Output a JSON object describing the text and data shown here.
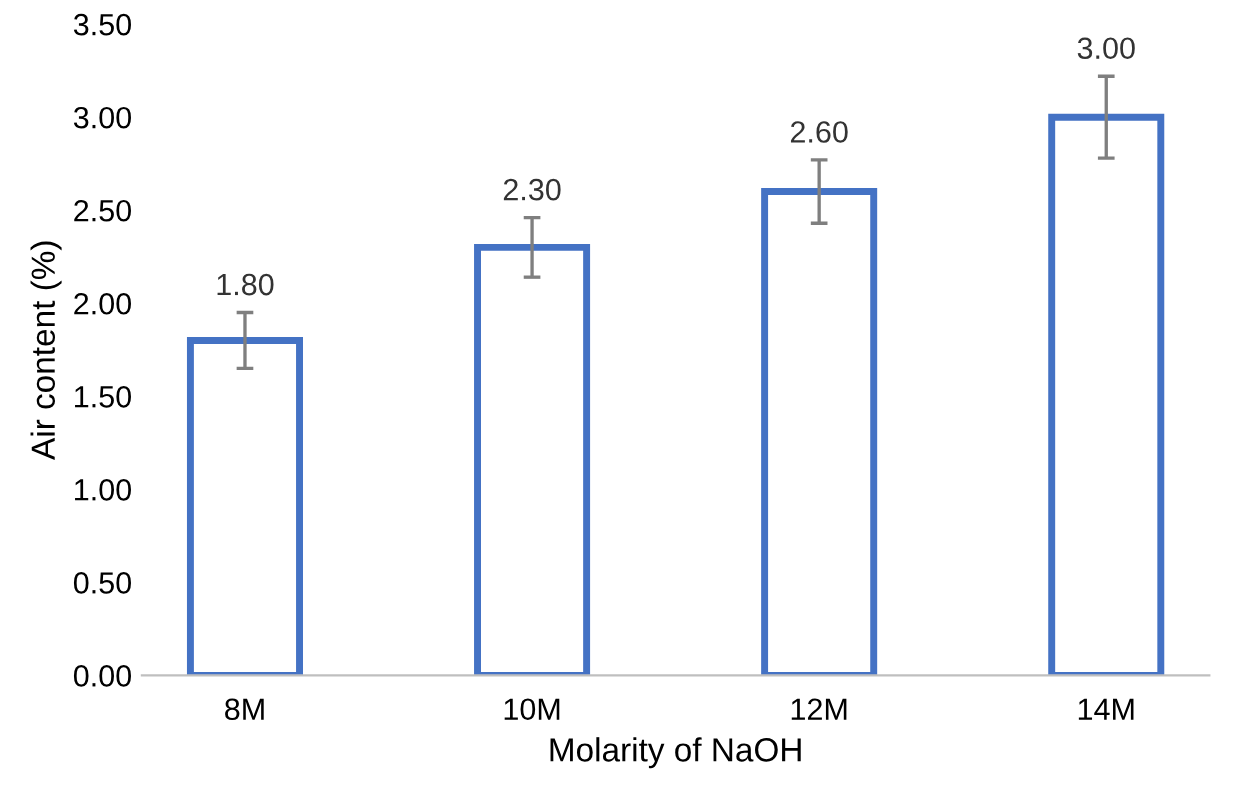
{
  "chart_data": {
    "type": "bar",
    "xlabel": "Molarity of NaOH",
    "ylabel": "Air content (%)",
    "categories": [
      "8M",
      "10M",
      "12M",
      "14M"
    ],
    "values": [
      1.8,
      2.3,
      2.6,
      3.0
    ],
    "errors": [
      0.15,
      0.16,
      0.17,
      0.22
    ],
    "value_labels": [
      "1.80",
      "2.30",
      "2.60",
      "3.00"
    ],
    "color": "#4472c4",
    "ylim": [
      0,
      3.5
    ],
    "yticks": [
      {
        "value": 0,
        "label": "0.00"
      },
      {
        "value": 0.5,
        "label": "0.50"
      },
      {
        "value": 1,
        "label": "1.00"
      },
      {
        "value": 1.5,
        "label": "1.50"
      },
      {
        "value": 2,
        "label": "2.00"
      },
      {
        "value": 2.5,
        "label": "2.50"
      },
      {
        "value": 3,
        "label": "3.00"
      },
      {
        "value": 3.5,
        "label": "3.50"
      }
    ],
    "grid": false,
    "legend": false
  }
}
